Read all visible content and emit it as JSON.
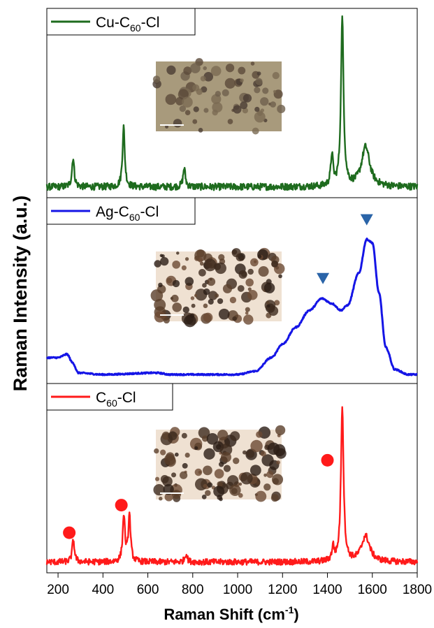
{
  "chart_data": {
    "type": "line",
    "xlabel": "Raman Shift (cm",
    "xlabel_sup": "-1",
    "xlabel_end": ")",
    "ylabel": "Raman Intensity (a.u.)",
    "xlim": [
      150,
      1800
    ],
    "x_ticks": [
      200,
      400,
      600,
      800,
      1000,
      1200,
      1400,
      1600,
      1800
    ],
    "y_ticks_shown": false,
    "grid": false,
    "stacked_panels": true,
    "legend_location": "top-left of each panel",
    "panels": [
      {
        "name": "Cu-C60-Cl",
        "legend_main": "Cu-C",
        "legend_sub": "60",
        "legend_end": "-Cl",
        "color": "#1e6b1e",
        "inset_image": "optical micrograph, scale bar",
        "peaks": [
          {
            "x": 267,
            "y": 0.17
          },
          {
            "x": 492,
            "y": 0.35
          },
          {
            "x": 762,
            "y": 0.11
          },
          {
            "x": 1420,
            "y": 0.18
          },
          {
            "x": 1466,
            "y": 0.97
          },
          {
            "x": 1570,
            "y": 0.23
          }
        ],
        "baseline": 0.03,
        "noise": 0.025
      },
      {
        "name": "Ag-C60-Cl",
        "legend_main": "Ag-C",
        "legend_sub": "60",
        "legend_end": "-Cl",
        "color": "#1515e6",
        "inset_image": "optical micrograph, scale bar",
        "markers": {
          "shape": "triangle-down",
          "color": "#2a64a8",
          "x": [
            1380,
            1575
          ]
        },
        "curve": [
          [
            150,
            0.12
          ],
          [
            200,
            0.12
          ],
          [
            240,
            0.14
          ],
          [
            265,
            0.09
          ],
          [
            290,
            0.03
          ],
          [
            400,
            0.02
          ],
          [
            640,
            0.03
          ],
          [
            700,
            0.02
          ],
          [
            1000,
            0.02
          ],
          [
            1080,
            0.04
          ],
          [
            1150,
            0.12
          ],
          [
            1200,
            0.2
          ],
          [
            1260,
            0.3
          ],
          [
            1320,
            0.4
          ],
          [
            1375,
            0.47
          ],
          [
            1420,
            0.44
          ],
          [
            1460,
            0.4
          ],
          [
            1490,
            0.43
          ],
          [
            1540,
            0.62
          ],
          [
            1575,
            0.82
          ],
          [
            1600,
            0.8
          ],
          [
            1630,
            0.5
          ],
          [
            1660,
            0.18
          ],
          [
            1700,
            0.05
          ],
          [
            1760,
            0.02
          ],
          [
            1800,
            0.02
          ]
        ]
      },
      {
        "name": "C60-Cl",
        "legend_main": "C",
        "legend_sub": "60",
        "legend_end": "-Cl",
        "color": "#ff1a1a",
        "inset_image": "optical micrograph, scale bar",
        "markers": {
          "shape": "circle",
          "color": "#ff1a1a",
          "x": [
            250,
            482,
            1400
          ]
        },
        "peaks": [
          {
            "x": 268,
            "y": 0.13
          },
          {
            "x": 493,
            "y": 0.27
          },
          {
            "x": 518,
            "y": 0.27
          },
          {
            "x": 770,
            "y": 0.05
          },
          {
            "x": 1425,
            "y": 0.08
          },
          {
            "x": 1466,
            "y": 0.9
          },
          {
            "x": 1570,
            "y": 0.15
          }
        ],
        "baseline": 0.03,
        "noise": 0.022
      }
    ]
  }
}
